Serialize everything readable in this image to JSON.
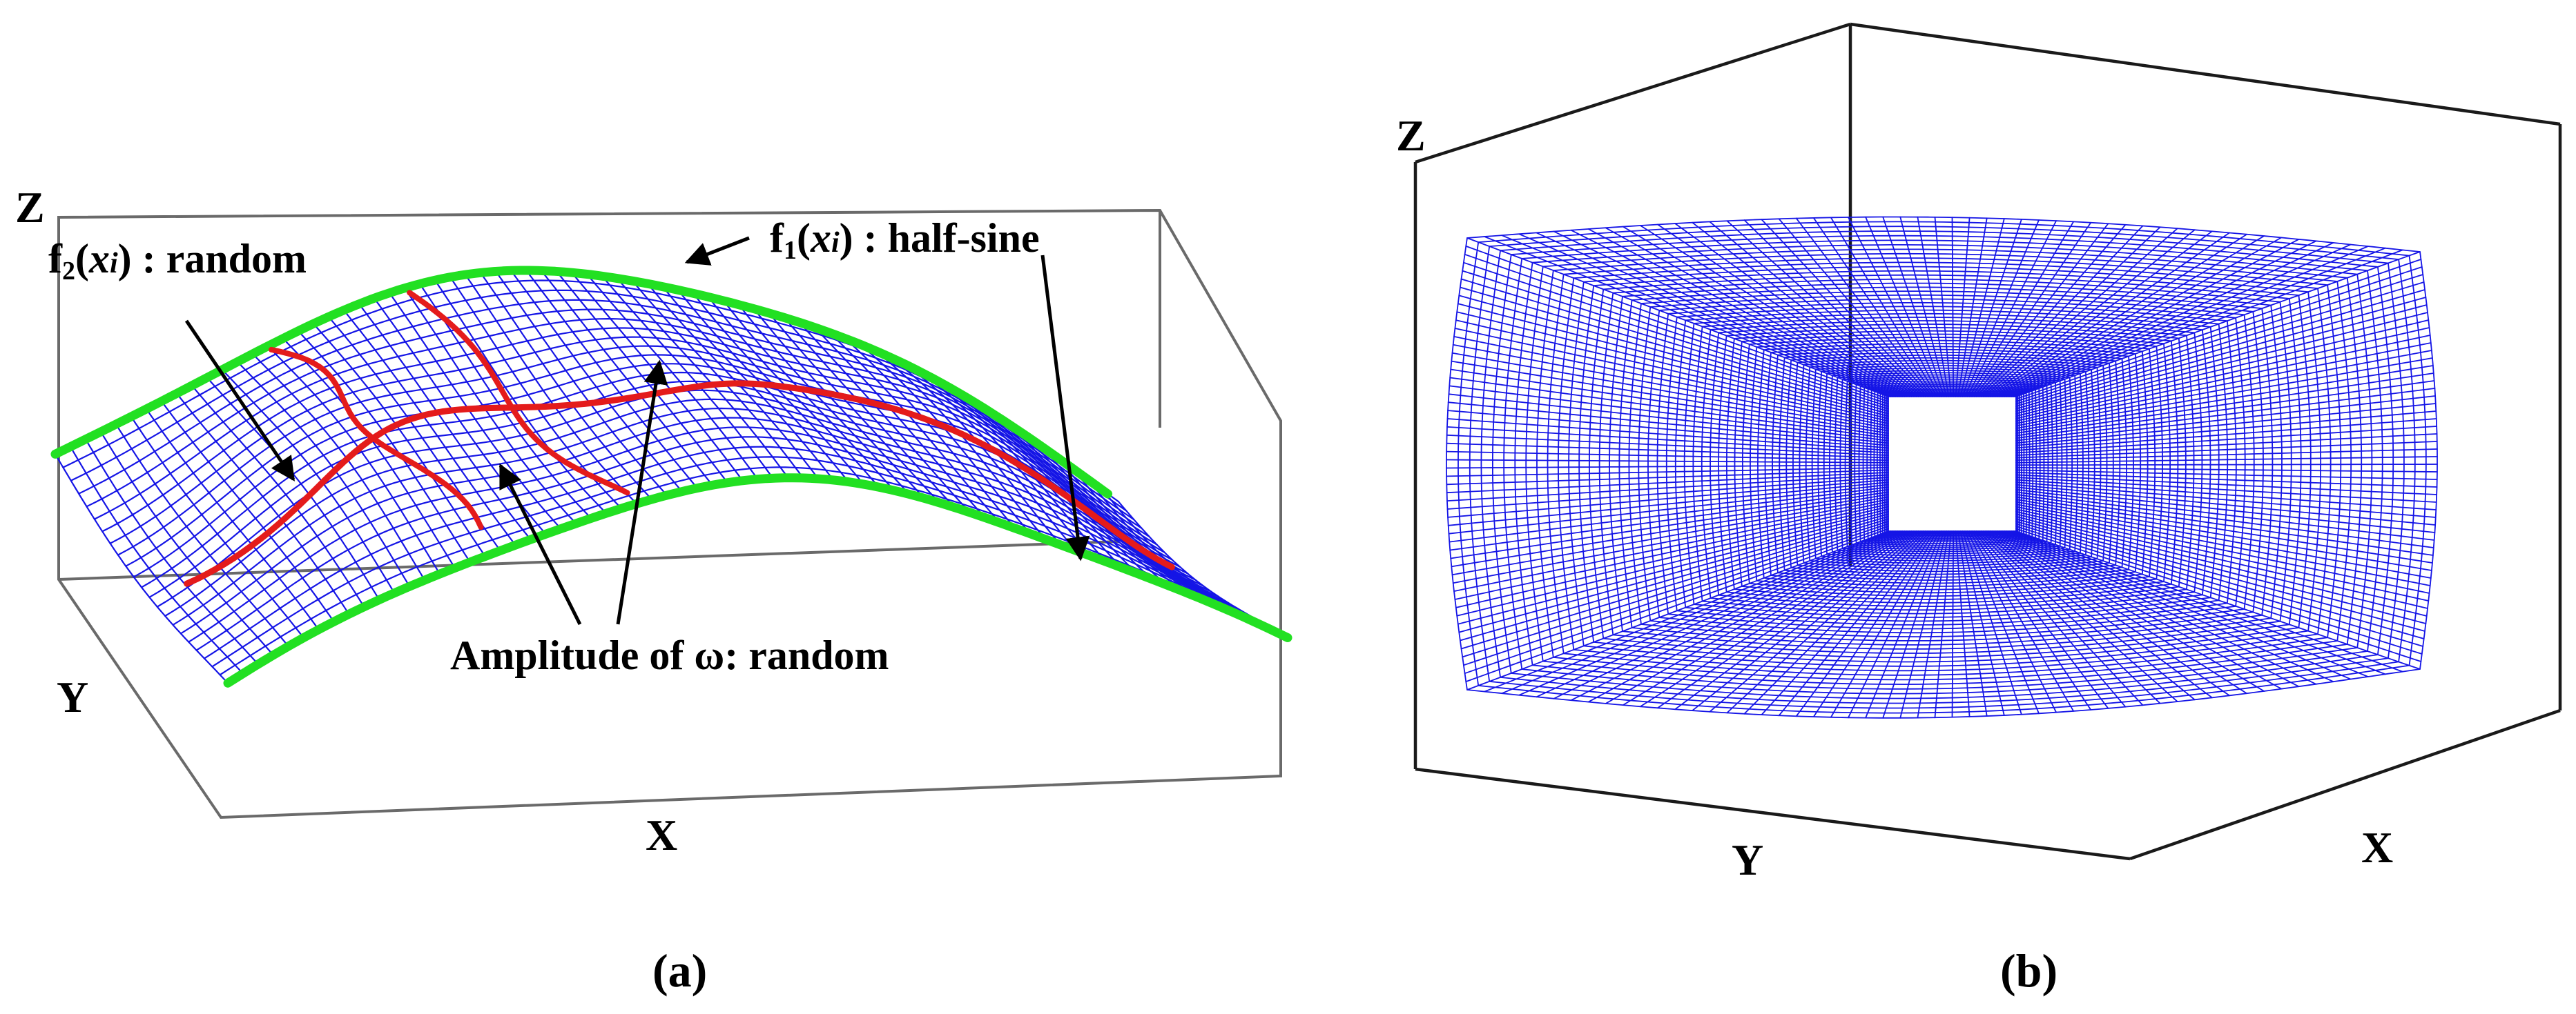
{
  "colors": {
    "mesh": "#1515e6",
    "boundary": "#22e022",
    "random_curve": "#e41b1b",
    "frame": "#6a6a6a"
  },
  "panel_a": {
    "axes": {
      "x": "X",
      "y": "Y",
      "z": "Z"
    },
    "annotations": {
      "f2_prefix": "f",
      "f2_sub": "2",
      "f2_open": "(",
      "f2_var": "x",
      "f2_var_sub": "i",
      "f2_close": ") : random",
      "f1_prefix": "f",
      "f1_sub": "1",
      "f1_open": "(",
      "f1_var": "x",
      "f1_var_sub": "i",
      "f1_close": ") : half-sine",
      "amplitude": "Amplitude of ω: random"
    },
    "caption": "(a)"
  },
  "panel_b": {
    "axes": {
      "x": "X",
      "y": "Y",
      "z": "Z"
    },
    "caption": "(b)"
  }
}
